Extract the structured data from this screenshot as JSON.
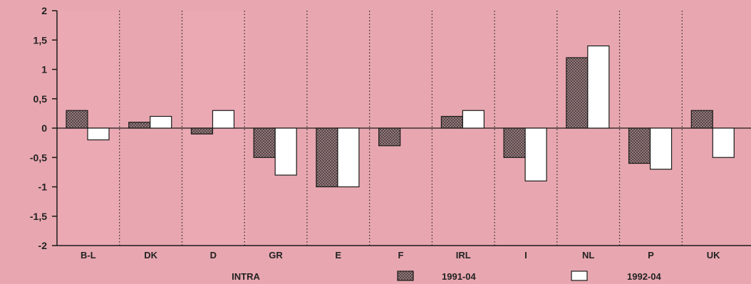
{
  "chart_data": {
    "type": "bar",
    "categories": [
      "B-L",
      "DK",
      "D",
      "GR",
      "E",
      "F",
      "IRL",
      "I",
      "NL",
      "P",
      "UK"
    ],
    "series": [
      {
        "name": "1991-04",
        "values": [
          0.3,
          0.1,
          -0.1,
          -0.5,
          -1.0,
          -0.3,
          0.2,
          -0.5,
          1.2,
          -0.6,
          0.3
        ],
        "pattern": "crosshatch"
      },
      {
        "name": "1992-04",
        "values": [
          -0.2,
          0.2,
          0.3,
          -0.8,
          -1.0,
          null,
          0.3,
          -0.9,
          1.4,
          -0.7,
          -0.5
        ],
        "pattern": "white"
      }
    ],
    "ylim": [
      -2,
      2
    ],
    "yticks": [
      "2",
      "1,5",
      "1",
      "0,5",
      "0",
      "-0,5",
      "-1",
      "-1,5",
      "-2"
    ],
    "xlabel": "INTRA",
    "grid": "dotted vertical separators",
    "legend_position": "bottom",
    "colors": {
      "background": "#e8a7b0",
      "bar_fill_1991": "#9a7d7e",
      "bar_fill_1992": "#ffffff",
      "stroke": "#1a1a1a"
    }
  }
}
